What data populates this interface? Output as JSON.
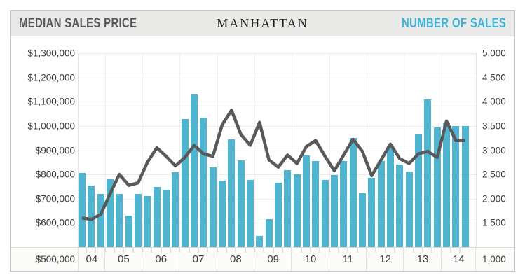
{
  "header": {
    "left_title": "MEDIAN SALES PRICE",
    "center_title": "MANHATTAN",
    "right_title": "NUMBER OF SALES"
  },
  "colors": {
    "bar": "#4fb4cf",
    "line": "#58595b",
    "right_title_blue": "#3bb3d7",
    "left_title_gray": "#55565a",
    "header_bg": "#e9e9e7"
  },
  "left_axis_labels": [
    "$1,300,000",
    "$1,200,000",
    "$1,100,000",
    "$1,000,000",
    "$900,000",
    "$800,000",
    "$700,000",
    "$600,000",
    "$500,000"
  ],
  "right_axis_labels": [
    "5,000",
    "4,500",
    "4,000",
    "3,500",
    "3,000",
    "2,500",
    "2,000",
    "1,500",
    "1,000"
  ],
  "chart_data": {
    "type": "bar+line",
    "title": "MANHATTAN",
    "x_unit": "quarter",
    "grid": "on",
    "years": [
      {
        "label": "04",
        "quarters": 3
      },
      {
        "label": "05",
        "quarters": 4
      },
      {
        "label": "06",
        "quarters": 4
      },
      {
        "label": "07",
        "quarters": 4
      },
      {
        "label": "08",
        "quarters": 4
      },
      {
        "label": "09",
        "quarters": 4
      },
      {
        "label": "10",
        "quarters": 4
      },
      {
        "label": "11",
        "quarters": 4
      },
      {
        "label": "12",
        "quarters": 4
      },
      {
        "label": "13",
        "quarters": 4
      },
      {
        "label": "14",
        "quarters": 3
      }
    ],
    "left_axis": {
      "label": "Median Sales Price",
      "min": 500000,
      "max": 1300000,
      "step": 100000
    },
    "right_axis": {
      "label": "Number of Sales",
      "min": 1000,
      "max": 5000,
      "step": 500
    },
    "series": [
      {
        "name": "Number of Sales",
        "type": "bar",
        "axis": "right",
        "values": [
          2525,
          2275,
          2100,
          2400,
          2100,
          1650,
          2100,
          2050,
          2240,
          2190,
          2550,
          3650,
          4145,
          3675,
          2650,
          2375,
          3225,
          2790,
          2380,
          1230,
          1575,
          2335,
          2585,
          2500,
          2885,
          2775,
          2390,
          2490,
          2775,
          3255,
          2110,
          2430,
          2775,
          3100,
          2710,
          2565,
          3325,
          4050,
          3475,
          3550,
          3500,
          3500
        ]
      },
      {
        "name": "Median Sales Price",
        "type": "line",
        "axis": "left",
        "values": [
          620000,
          615000,
          635000,
          720000,
          800000,
          755000,
          765000,
          850000,
          910000,
          875000,
          835000,
          870000,
          920000,
          885000,
          875000,
          1005000,
          1065000,
          965000,
          920000,
          1015000,
          860000,
          830000,
          880000,
          845000,
          915000,
          940000,
          875000,
          815000,
          880000,
          945000,
          895000,
          795000,
          860000,
          925000,
          865000,
          845000,
          885000,
          895000,
          870000,
          1020000,
          940000,
          940000
        ]
      }
    ]
  }
}
